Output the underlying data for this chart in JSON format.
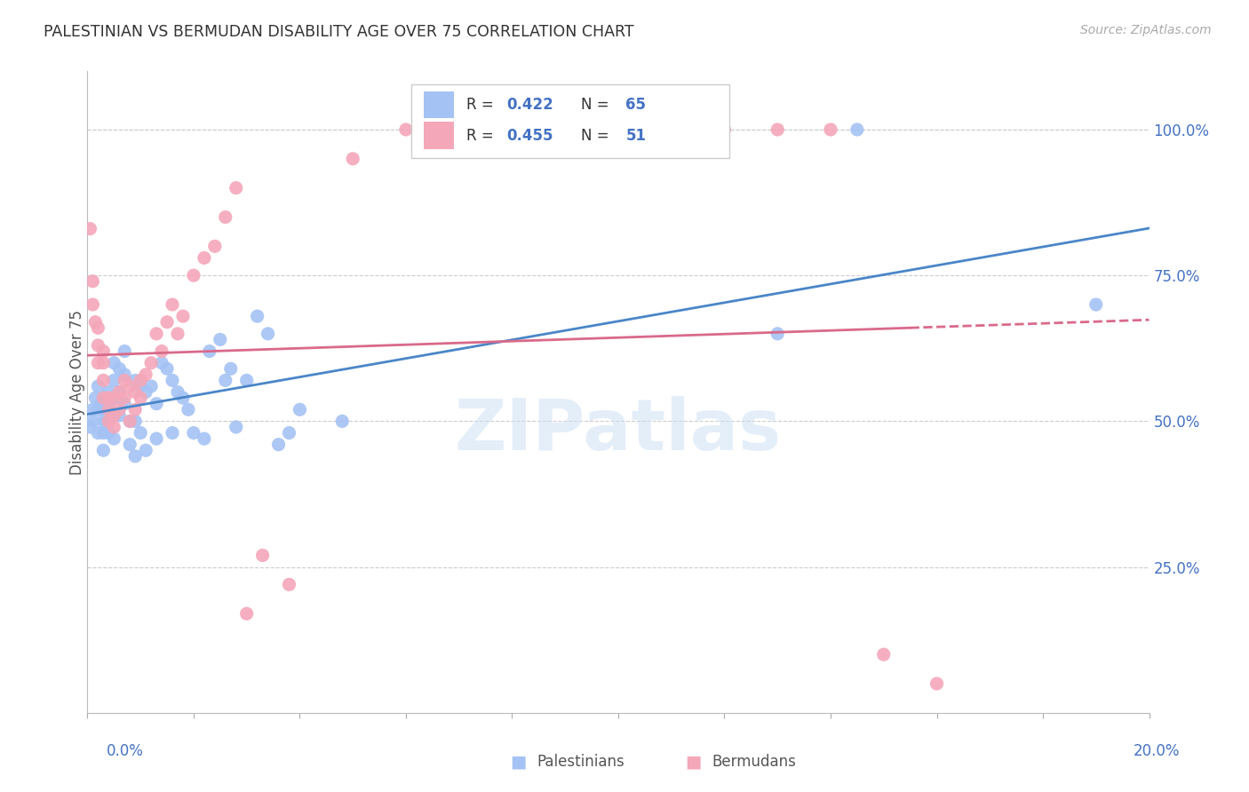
{
  "title": "PALESTINIAN VS BERMUDAN DISABILITY AGE OVER 75 CORRELATION CHART",
  "source": "Source: ZipAtlas.com",
  "ylabel": "Disability Age Over 75",
  "xmin": 0.0,
  "xmax": 0.2,
  "ymin": 0.0,
  "ymax": 1.1,
  "yticks": [
    0.25,
    0.5,
    0.75,
    1.0
  ],
  "ytick_labels": [
    "25.0%",
    "50.0%",
    "75.0%",
    "100.0%"
  ],
  "blue_color": "#a4c2f4",
  "pink_color": "#f4a7b9",
  "blue_line_color": "#4a86c8",
  "pink_line_color": "#d96a8a",
  "accent_color": "#4472c4",
  "watermark": "ZIPatlas",
  "blue_R": 0.422,
  "blue_N": 65,
  "pink_R": 0.455,
  "pink_N": 51,
  "blue_scatter_x": [
    0.0005,
    0.001,
    0.001,
    0.0015,
    0.002,
    0.002,
    0.002,
    0.0025,
    0.003,
    0.003,
    0.003,
    0.003,
    0.003,
    0.0035,
    0.004,
    0.004,
    0.004,
    0.004,
    0.005,
    0.005,
    0.005,
    0.005,
    0.005,
    0.006,
    0.006,
    0.006,
    0.007,
    0.007,
    0.007,
    0.008,
    0.008,
    0.009,
    0.009,
    0.009,
    0.01,
    0.01,
    0.011,
    0.011,
    0.012,
    0.013,
    0.013,
    0.014,
    0.015,
    0.016,
    0.016,
    0.017,
    0.018,
    0.019,
    0.02,
    0.022,
    0.023,
    0.025,
    0.026,
    0.027,
    0.028,
    0.03,
    0.032,
    0.034,
    0.036,
    0.038,
    0.04,
    0.048,
    0.13,
    0.145,
    0.19
  ],
  "blue_scatter_y": [
    0.49,
    0.52,
    0.5,
    0.54,
    0.56,
    0.52,
    0.48,
    0.53,
    0.54,
    0.52,
    0.5,
    0.48,
    0.45,
    0.5,
    0.55,
    0.53,
    0.51,
    0.48,
    0.6,
    0.57,
    0.54,
    0.51,
    0.47,
    0.59,
    0.55,
    0.51,
    0.62,
    0.58,
    0.53,
    0.5,
    0.46,
    0.57,
    0.5,
    0.44,
    0.56,
    0.48,
    0.55,
    0.45,
    0.56,
    0.53,
    0.47,
    0.6,
    0.59,
    0.57,
    0.48,
    0.55,
    0.54,
    0.52,
    0.48,
    0.47,
    0.62,
    0.64,
    0.57,
    0.59,
    0.49,
    0.57,
    0.68,
    0.65,
    0.46,
    0.48,
    0.52,
    0.5,
    0.65,
    1.0,
    0.7
  ],
  "pink_scatter_x": [
    0.0005,
    0.001,
    0.001,
    0.0015,
    0.002,
    0.002,
    0.002,
    0.003,
    0.003,
    0.003,
    0.003,
    0.004,
    0.004,
    0.004,
    0.005,
    0.005,
    0.005,
    0.006,
    0.006,
    0.007,
    0.007,
    0.008,
    0.008,
    0.009,
    0.009,
    0.01,
    0.01,
    0.011,
    0.012,
    0.013,
    0.014,
    0.015,
    0.016,
    0.017,
    0.018,
    0.02,
    0.022,
    0.024,
    0.026,
    0.028,
    0.03,
    0.033,
    0.038,
    0.05,
    0.06,
    0.08,
    0.12,
    0.13,
    0.14,
    0.15,
    0.16
  ],
  "pink_scatter_y": [
    0.83,
    0.74,
    0.7,
    0.67,
    0.66,
    0.63,
    0.6,
    0.62,
    0.6,
    0.57,
    0.54,
    0.54,
    0.52,
    0.5,
    0.54,
    0.51,
    0.49,
    0.55,
    0.52,
    0.57,
    0.54,
    0.56,
    0.5,
    0.55,
    0.52,
    0.57,
    0.54,
    0.58,
    0.6,
    0.65,
    0.62,
    0.67,
    0.7,
    0.65,
    0.68,
    0.75,
    0.78,
    0.8,
    0.85,
    0.9,
    0.17,
    0.27,
    0.22,
    0.95,
    1.0,
    1.0,
    1.0,
    1.0,
    1.0,
    0.1,
    0.05
  ]
}
